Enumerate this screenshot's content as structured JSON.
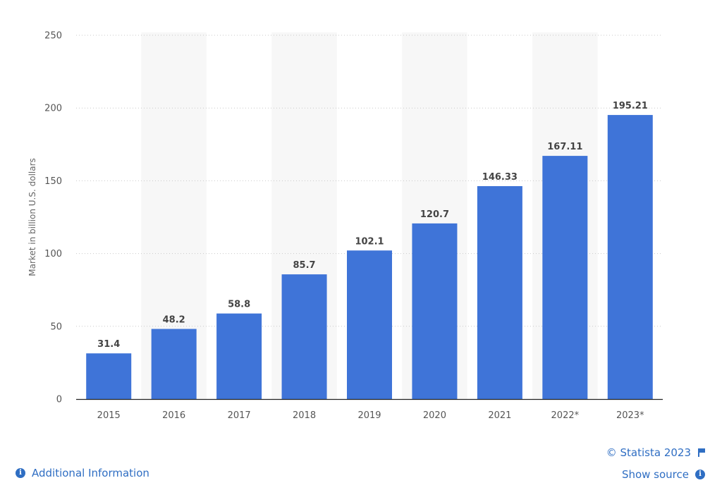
{
  "chart_data": {
    "type": "bar",
    "categories": [
      "2015",
      "2016",
      "2017",
      "2018",
      "2019",
      "2020",
      "2021",
      "2022*",
      "2023*"
    ],
    "values": [
      31.4,
      48.2,
      58.8,
      85.7,
      102.1,
      120.7,
      146.33,
      167.11,
      195.21
    ],
    "data_labels": [
      "31.4",
      "48.2",
      "58.8",
      "85.7",
      "102.1",
      "120.7",
      "146.33",
      "167.11",
      "195.21"
    ],
    "title": "",
    "xlabel": "",
    "ylabel": "Market in billion U.S. dollars",
    "ylim": [
      0,
      250
    ],
    "yticks": [
      0,
      50,
      100,
      150,
      200,
      250
    ],
    "ytick_labels": [
      "0",
      "50",
      "100",
      "150",
      "200",
      "250"
    ],
    "grid": true,
    "bar_color": "#3f74d8",
    "alt_band_color": "#f7f7f7"
  },
  "footer": {
    "copyright": "© Statista 2023",
    "additional_info": "Additional Information",
    "show_source": "Show source",
    "link_color": "#2f6ec3"
  },
  "icons": {
    "info": "info-icon",
    "flag": "flag-icon"
  }
}
